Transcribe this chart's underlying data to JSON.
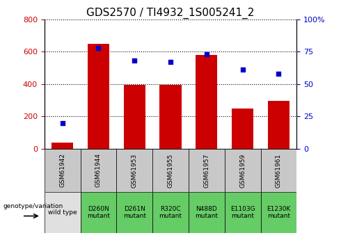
{
  "title": "GDS2570 / TI4932_1S005241_2",
  "categories": [
    "GSM61942",
    "GSM61944",
    "GSM61953",
    "GSM61955",
    "GSM61957",
    "GSM61959",
    "GSM61961"
  ],
  "counts": [
    40,
    650,
    395,
    395,
    580,
    248,
    298
  ],
  "percentile_ranks": [
    20,
    78,
    68,
    67,
    73,
    61,
    58
  ],
  "genotypes": [
    "wild type",
    "D260N\nmutant",
    "D261N\nmutant",
    "R320C\nmutant",
    "N488D\nmutant",
    "E1103G\nmutant",
    "E1230K\nmutant"
  ],
  "bar_color": "#cc0000",
  "dot_color": "#0000cc",
  "ylim_left": [
    0,
    800
  ],
  "ylim_right": [
    0,
    100
  ],
  "yticks_left": [
    0,
    200,
    400,
    600,
    800
  ],
  "yticks_right": [
    0,
    25,
    50,
    75,
    100
  ],
  "ytick_labels_right": [
    "0",
    "25",
    "50",
    "75",
    "100%"
  ],
  "genotype_bg_wild": "#e0e0e0",
  "genotype_bg_mutant": "#66cc66",
  "label_row1_bg": "#c8c8c8",
  "title_fontsize": 11,
  "tick_fontsize": 8,
  "genotype_fontsize": 6.5
}
